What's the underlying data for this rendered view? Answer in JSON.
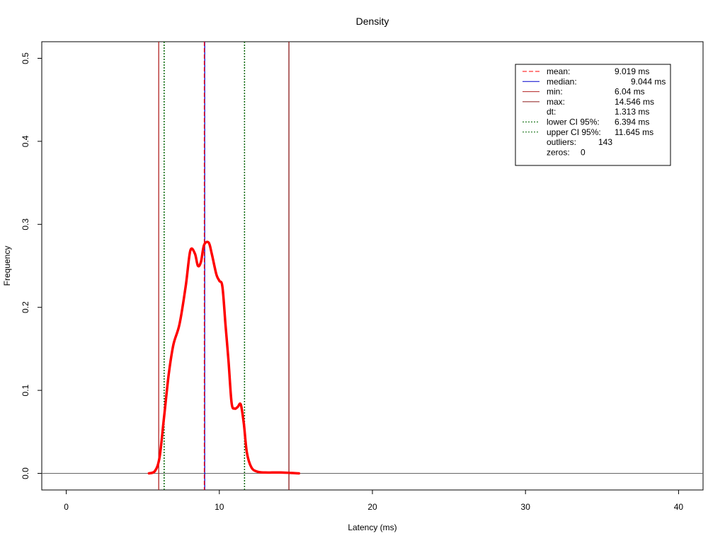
{
  "chart_data": {
    "type": "line",
    "title": "Density",
    "xlabel": "Latency (ms)",
    "ylabel": "Frequency",
    "xlim": [
      -1.6,
      41.6
    ],
    "ylim": [
      -0.02,
      0.52
    ],
    "xticks": [
      0,
      10,
      20,
      30,
      40
    ],
    "yticks": [
      0.0,
      0.1,
      0.2,
      0.3,
      0.4,
      0.5
    ],
    "xtick_labels": [
      "0",
      "10",
      "20",
      "30",
      "40"
    ],
    "ytick_labels": [
      "0.0",
      "0.1",
      "0.2",
      "0.3",
      "0.4",
      "0.5"
    ],
    "grid": false,
    "legend_position": "top-right",
    "series": [
      {
        "color": "#ff0000",
        "x": [
          5.4,
          5.8,
          6.1,
          6.4,
          6.7,
          7.0,
          7.4,
          7.8,
          8.1,
          8.4,
          8.6,
          8.8,
          9.0,
          9.3,
          9.5,
          9.8,
          10.0,
          10.2,
          10.4,
          10.6,
          10.8,
          11.0,
          11.2,
          11.4,
          11.6,
          11.8,
          12.1,
          12.5,
          13.0,
          14.0,
          15.2
        ],
        "y": [
          0.0,
          0.003,
          0.02,
          0.07,
          0.12,
          0.155,
          0.18,
          0.225,
          0.268,
          0.265,
          0.25,
          0.255,
          0.275,
          0.278,
          0.265,
          0.24,
          0.232,
          0.225,
          0.18,
          0.135,
          0.085,
          0.078,
          0.08,
          0.083,
          0.06,
          0.025,
          0.007,
          0.002,
          0.001,
          0.001,
          0.0
        ]
      }
    ],
    "vlines": [
      {
        "x": 6.04,
        "color": "#b22222",
        "style": "solid"
      },
      {
        "x": 6.394,
        "color": "#006400",
        "style": "dotted"
      },
      {
        "x": 9.044,
        "color": "#0000cc",
        "style": "solid"
      },
      {
        "x": 9.019,
        "color": "#ff0000",
        "style": "dashed"
      },
      {
        "x": 11.645,
        "color": "#006400",
        "style": "dotted"
      },
      {
        "x": 14.546,
        "color": "#8b1a1a",
        "style": "solid"
      }
    ],
    "hline": {
      "y": 0.0,
      "color": "#666666"
    },
    "legend": [
      {
        "label": "mean:",
        "value": "9.019 ms",
        "line_color": "#ff0000",
        "line_style": "dashed"
      },
      {
        "label": "median:",
        "value": "9.044 ms",
        "line_color": "#0000cc",
        "line_style": "solid"
      },
      {
        "label": "min:",
        "value": "6.04 ms",
        "line_color": "#b22222",
        "line_style": "solid"
      },
      {
        "label": "max:",
        "value": "14.546 ms",
        "line_color": "#8b1a1a",
        "line_style": "solid"
      },
      {
        "label": "dt:",
        "value": "1.313 ms",
        "line_color": "",
        "line_style": "none"
      },
      {
        "label": "lower CI 95%:",
        "value": "6.394 ms",
        "line_color": "#006400",
        "line_style": "dotted"
      },
      {
        "label": "upper CI 95%:",
        "value": "11.645 ms",
        "line_color": "#006400",
        "line_style": "dotted"
      },
      {
        "label": "outliers:",
        "value": "143",
        "line_color": "",
        "line_style": "none"
      },
      {
        "label": "zeros:",
        "value": "0",
        "line_color": "",
        "line_style": "none"
      }
    ]
  }
}
